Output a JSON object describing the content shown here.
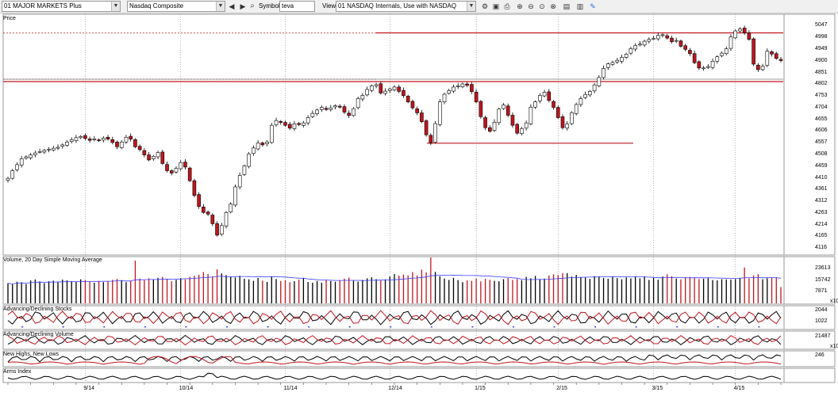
{
  "toolbar": {
    "layout_combo": "01 MAJOR MARKETS Plus",
    "symbol_combo": "Nasdaq Composite",
    "symbol_label": "Symbol:",
    "symbol_value": "teva",
    "view_label": "View:",
    "view_combo": "01 NASDAQ Internals, Use with NASDAQ",
    "icons": [
      "back-arrow-icon",
      "forward-arrow-icon",
      "binoculars-icon",
      "save-icon",
      "print-icon",
      "copy-icon",
      "zoom-in-icon",
      "zoom-out-icon",
      "zoom-fit-icon",
      "zoom-reset-icon",
      "chart-icon",
      "paint-icon"
    ]
  },
  "panes": {
    "price_title": "Price",
    "volume_title": "Volume, 20 Day Simple Moving Average",
    "adv_dec_title": "Advancing/Declining Stocks",
    "adv_dec_vol_title": "Advancing/Declining Volume",
    "highs_lows_title": "New Highs, New Lows",
    "arms_title": "Arms Index"
  },
  "chart_data": [
    {
      "type": "candlestick",
      "title": "Price",
      "y_ticks": [
        "5047",
        "4998",
        "4949",
        "4900",
        "4851",
        "4802",
        "4753",
        "4704",
        "4655",
        "4606",
        "4557",
        "4508",
        "4459",
        "4410",
        "4361",
        "4312",
        "4263",
        "4214",
        "4165",
        "4116"
      ],
      "ylim": [
        4100,
        5065
      ],
      "x_labels": [
        "9/14",
        "10/14",
        "11/14",
        "12/14",
        "1/15",
        "2/15",
        "3/15",
        "4/15"
      ],
      "closes": [
        4408,
        4440,
        4465,
        4490,
        4498,
        4506,
        4514,
        4520,
        4525,
        4530,
        4534,
        4538,
        4548,
        4560,
        4570,
        4578,
        4583,
        4575,
        4567,
        4573,
        4568,
        4576,
        4572,
        4558,
        4540,
        4560,
        4580,
        4572,
        4540,
        4528,
        4506,
        4485,
        4500,
        4516,
        4470,
        4440,
        4430,
        4450,
        4474,
        4455,
        4398,
        4336,
        4290,
        4265,
        4258,
        4218,
        4170,
        4210,
        4265,
        4300,
        4372,
        4420,
        4460,
        4510,
        4535,
        4556,
        4548,
        4560,
        4630,
        4650,
        4642,
        4630,
        4618,
        4636,
        4633,
        4640,
        4662,
        4680,
        4694,
        4705,
        4696,
        4703,
        4712,
        4706,
        4685,
        4671,
        4700,
        4742,
        4755,
        4780,
        4795,
        4800,
        4765,
        4773,
        4782,
        4790,
        4772,
        4754,
        4728,
        4703,
        4682,
        4645,
        4590,
        4557,
        4637,
        4728,
        4760,
        4775,
        4790,
        4795,
        4803,
        4797,
        4771,
        4728,
        4666,
        4620,
        4605,
        4643,
        4698,
        4715,
        4672,
        4630,
        4597,
        4616,
        4640,
        4706,
        4728,
        4755,
        4768,
        4734,
        4705,
        4662,
        4620,
        4635,
        4683,
        4717,
        4742,
        4759,
        4772,
        4799,
        4830,
        4868,
        4887,
        4893,
        4902,
        4914,
        4928,
        4951,
        4964,
        4970,
        4982,
        4990,
        4994,
        5006,
        5009,
        4995,
        4980,
        4985,
        4961,
        4948,
        4930,
        4892,
        4870,
        4870,
        4876,
        4898,
        4917,
        4932,
        4950,
        5000,
        5025,
        5033,
        5018,
        4990,
        4886,
        4863,
        4877,
        4940,
        4928,
        4910,
        4901
      ],
      "closes_note": "daily closes read off the price axis; candles are bull (white) when close > open, bear (red) otherwise",
      "horizontal_lines": [
        5017,
        4813,
        4555
      ],
      "dotted_lines": [
        5016,
        4813
      ]
    },
    {
      "type": "bar",
      "title": "Volume, 20 Day Simple Moving Average",
      "y_ticks": [
        "23613",
        "15742",
        "7871"
      ],
      "y_multiplier_label": "x10",
      "ylim": [
        0,
        31000
      ],
      "volume_values": [
        13500,
        12800,
        14600,
        14200,
        13000,
        15400,
        16100,
        14800,
        13700,
        14900,
        15300,
        14600,
        16000,
        15600,
        15000,
        14500,
        16200,
        15800,
        14600,
        13900,
        15100,
        14300,
        15000,
        15900,
        16500,
        15700,
        14300,
        15000,
        28800,
        16700,
        15600,
        16900,
        16000,
        17200,
        17800,
        16300,
        14900,
        15900,
        17000,
        16100,
        17900,
        18600,
        19300,
        21100,
        19800,
        18200,
        22900,
        20200,
        19000,
        18000,
        17400,
        18600,
        16600,
        16200,
        15200,
        17100,
        15300,
        14500,
        18100,
        16400,
        15000,
        15700,
        14300,
        14900,
        16000,
        17200,
        14400,
        13900,
        15100,
        14000,
        16000,
        15100,
        14600,
        15600,
        16700,
        17400,
        15300,
        14700,
        15800,
        16900,
        17600,
        16300,
        15400,
        16200,
        18100,
        19800,
        18700,
        19400,
        18900,
        21100,
        18800,
        22700,
        20900,
        30900,
        21200,
        18200,
        16700,
        15800,
        17200,
        15700,
        14300,
        15500,
        15100,
        16700,
        14800,
        16500,
        15900,
        15200,
        14900,
        16300,
        17100,
        15800,
        16400,
        15600,
        17800,
        16900,
        18500,
        16200,
        16700,
        18800,
        19600,
        19100,
        20300,
        20400,
        18000,
        19200,
        17600,
        17400,
        16500,
        18300,
        18100,
        17100,
        16600,
        17700,
        17000,
        16200,
        17500,
        16800,
        17800,
        16900,
        18100,
        15800,
        17200,
        15900,
        18100,
        19600,
        18300,
        16700,
        16200,
        17400,
        17800,
        17500,
        16400,
        16600,
        17000,
        15700,
        15500,
        16300,
        16100,
        16000,
        16400,
        17200,
        24200,
        16900,
        18900,
        19700,
        16300,
        16900,
        17200,
        17500,
        11000
      ],
      "moving_average_color": "#3a3aff"
    },
    {
      "type": "line",
      "title": "Advancing/Declining Stocks",
      "y_ticks": [
        "2044",
        "1022"
      ],
      "series": [
        {
          "color": "#000000",
          "pattern": "oscillating black line"
        },
        {
          "color": "#c0161e",
          "pattern": "oscillating red line"
        }
      ]
    },
    {
      "type": "line",
      "title": "Advancing/Declining Volume",
      "y_ticks": [
        "21487"
      ],
      "y_multiplier_label": "x10",
      "series": [
        {
          "color": "#000000",
          "pattern": "oscillating black line"
        },
        {
          "color": "#c0161e",
          "pattern": "oscillating red line"
        }
      ]
    },
    {
      "type": "line",
      "title": "New Highs, New Lows",
      "y_ticks": [
        "246"
      ],
      "series": [
        {
          "color": "#000000",
          "pattern": "new highs"
        },
        {
          "color": "#c0161e",
          "pattern": "new lows"
        }
      ]
    },
    {
      "type": "line",
      "title": "Arms Index",
      "series": [
        {
          "color": "#000000",
          "pattern": "arms index"
        }
      ]
    }
  ],
  "colors": {
    "bull_fill": "#ffffff",
    "bear_fill": "#c0161e",
    "candle_outline": "#000000",
    "support_line": "#c0161e",
    "grid_dotted": "#808080",
    "volume_up": "#000000",
    "volume_down": "#c0161e",
    "ma_line": "#3a3aff"
  }
}
